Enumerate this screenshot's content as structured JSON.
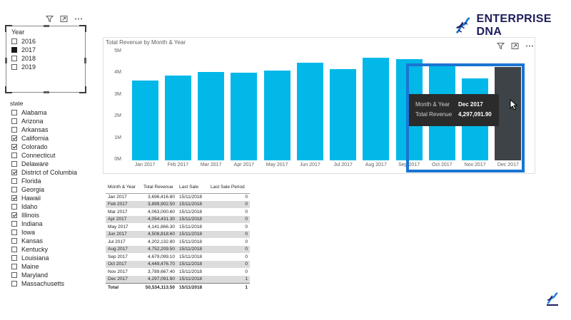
{
  "brand": {
    "name": "ENTERPRISE DNA",
    "color": "#1d1d5c",
    "accent": "#1a75d2"
  },
  "year_slicer": {
    "title": "Year",
    "options": [
      {
        "label": "2016",
        "checked": false
      },
      {
        "label": "2017",
        "checked": true
      },
      {
        "label": "2018",
        "checked": false
      },
      {
        "label": "2019",
        "checked": false
      }
    ],
    "icons": [
      "filter-icon",
      "focus-mode-icon",
      "more-options-icon"
    ]
  },
  "state_slicer": {
    "title": "state",
    "options": [
      {
        "label": "Alabama",
        "checked": false
      },
      {
        "label": "Arizona",
        "checked": false
      },
      {
        "label": "Arkansas",
        "checked": false
      },
      {
        "label": "California",
        "checked": true
      },
      {
        "label": "Colorado",
        "checked": true
      },
      {
        "label": "Connecticut",
        "checked": false
      },
      {
        "label": "Delaware",
        "checked": false
      },
      {
        "label": "District of Columbia",
        "checked": true
      },
      {
        "label": "Florida",
        "checked": false
      },
      {
        "label": "Georgia",
        "checked": false
      },
      {
        "label": "Hawaii",
        "checked": true
      },
      {
        "label": "Idaho",
        "checked": false
      },
      {
        "label": "Illinois",
        "checked": true
      },
      {
        "label": "Indiana",
        "checked": false
      },
      {
        "label": "Iowa",
        "checked": false
      },
      {
        "label": "Kansas",
        "checked": false
      },
      {
        "label": "Kentucky",
        "checked": false
      },
      {
        "label": "Louisiana",
        "checked": false
      },
      {
        "label": "Maine",
        "checked": false
      },
      {
        "label": "Maryland",
        "checked": false
      },
      {
        "label": "Massachusetts",
        "checked": false
      }
    ]
  },
  "chart": {
    "title": "Total Revenue by Month & Year",
    "bar_color": "#01b8e8",
    "highlight_color": "#3d4347"
  },
  "chart_data": {
    "type": "bar",
    "title": "Total Revenue by Month & Year",
    "categories": [
      "Jan 2017",
      "Feb 2017",
      "Mar 2017",
      "Apr 2017",
      "May 2017",
      "Jun 2017",
      "Jul 2017",
      "Aug 2017",
      "Sep 2017",
      "Oct 2017",
      "Nov 2017",
      "Dec 2017"
    ],
    "values": [
      3696416.8,
      3899902.5,
      4063000.6,
      4054431.3,
      4141866.3,
      4508818.6,
      4202132.8,
      4752209.5,
      4679099.1,
      4449476.7,
      3789667.4,
      4297091.9
    ],
    "ylim": [
      0,
      5000000
    ],
    "yticks": [
      "0M",
      "1M",
      "2M",
      "3M",
      "4M",
      "5M"
    ],
    "xlabel": "",
    "ylabel": "",
    "grid": false,
    "highlighted_category": "Dec 2017"
  },
  "tooltip": {
    "rows": [
      {
        "key": "Month & Year",
        "value": "Dec 2017"
      },
      {
        "key": "Total Revenue",
        "value": "4,297,091.90"
      }
    ]
  },
  "table": {
    "columns": [
      "Month & Year",
      "Total Revenue",
      "Last Sale",
      "Last Sale Period"
    ],
    "rows": [
      [
        "Jan 2017",
        "3,696,416.80",
        "15/11/2018",
        "0"
      ],
      [
        "Feb 2017",
        "3,899,902.50",
        "15/11/2018",
        "0"
      ],
      [
        "Mar 2017",
        "4,063,000.60",
        "15/11/2018",
        "0"
      ],
      [
        "Apr 2017",
        "4,054,431.30",
        "15/11/2018",
        "0"
      ],
      [
        "May 2017",
        "4,141,866.30",
        "15/11/2018",
        "0"
      ],
      [
        "Jun 2017",
        "4,508,818.60",
        "15/11/2018",
        "0"
      ],
      [
        "Jul 2017",
        "4,202,132.80",
        "15/11/2018",
        "0"
      ],
      [
        "Aug 2017",
        "4,752,209.50",
        "15/11/2018",
        "0"
      ],
      [
        "Sep 2017",
        "4,679,099.10",
        "15/11/2018",
        "0"
      ],
      [
        "Oct 2017",
        "4,449,476.70",
        "15/11/2018",
        "0"
      ],
      [
        "Nov 2017",
        "3,789,667.40",
        "15/11/2018",
        "0"
      ],
      [
        "Dec 2017",
        "4,297,091.90",
        "15/11/2018",
        "1"
      ]
    ],
    "total": [
      "Total",
      "50,534,113.50",
      "15/11/2018",
      "1"
    ]
  }
}
